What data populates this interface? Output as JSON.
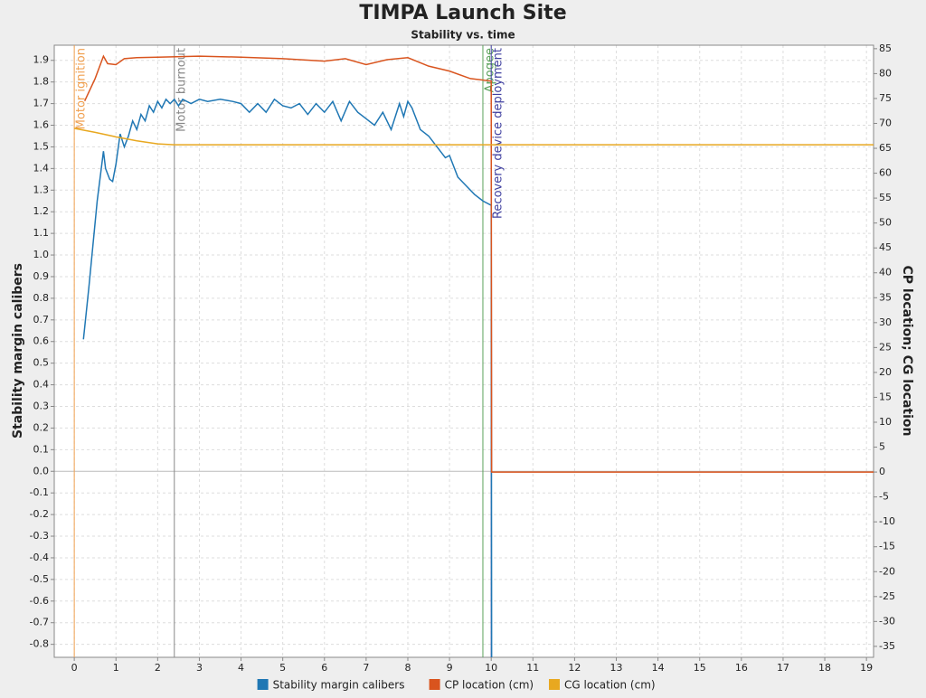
{
  "chart_data": {
    "type": "line",
    "title": "TIMPA Launch Site",
    "subtitle": "Stability vs. time",
    "ylabel": "Stability margin calibers",
    "y2label": "CP location; CG location",
    "xlim": [
      -0.48,
      19.17
    ],
    "xticks": [
      0,
      1,
      2,
      3,
      4,
      5,
      6,
      7,
      8,
      9,
      10,
      11,
      12,
      13,
      14,
      15,
      16,
      17,
      18,
      19
    ],
    "ylim": [
      -0.86,
      1.97
    ],
    "yticks": [
      -0.8,
      -0.7,
      -0.6,
      -0.5,
      -0.4,
      -0.3,
      -0.2,
      -0.1,
      {
        "value": 0,
        "label": "0.0"
      },
      0.1,
      0.2,
      0.3,
      0.4,
      0.5,
      0.6,
      0.7,
      0.8,
      0.9,
      {
        "value": 1,
        "label": "1.0"
      },
      1.1,
      1.2,
      1.3,
      1.4,
      1.5,
      1.6,
      1.7,
      1.8,
      1.9
    ],
    "y2lim": [
      -37.2,
      85.7
    ],
    "y2ticks": [
      -35,
      -30,
      -25,
      -20,
      -15,
      -10,
      -5,
      0,
      5,
      10,
      15,
      20,
      25,
      30,
      35,
      40,
      45,
      50,
      55,
      60,
      65,
      70,
      75,
      80,
      85
    ],
    "grid": true,
    "events": [
      {
        "x": 0,
        "label": "Motor ignition",
        "color": "#f0a050"
      },
      {
        "x": 2.4,
        "label": "Motor burnout",
        "color": "#888888"
      },
      {
        "x": 9.8,
        "label": "Apogee",
        "color": "#5aa05a"
      },
      {
        "x": 10,
        "label": "Recovery device deployment",
        "color": "#4040a0"
      }
    ],
    "series": [
      {
        "name": "Stability margin calibers",
        "color": "#1f77b4",
        "axis": "y",
        "x": [
          0.22,
          0.35,
          0.45,
          0.55,
          0.7,
          0.75,
          0.85,
          0.92,
          1.0,
          1.1,
          1.2,
          1.3,
          1.4,
          1.5,
          1.6,
          1.7,
          1.8,
          1.9,
          2.0,
          2.1,
          2.2,
          2.3,
          2.4,
          2.5,
          2.6,
          2.8,
          3.0,
          3.2,
          3.5,
          3.8,
          4.0,
          4.2,
          4.4,
          4.6,
          4.8,
          5.0,
          5.2,
          5.4,
          5.6,
          5.8,
          6.0,
          6.2,
          6.4,
          6.6,
          6.8,
          7.0,
          7.2,
          7.4,
          7.6,
          7.8,
          7.9,
          8.0,
          8.1,
          8.3,
          8.5,
          8.7,
          8.9,
          9.0,
          9.1,
          9.2,
          9.4,
          9.6,
          9.8,
          10.0,
          10.01
        ],
        "values": [
          0.61,
          0.85,
          1.05,
          1.25,
          1.48,
          1.4,
          1.35,
          1.34,
          1.42,
          1.56,
          1.5,
          1.55,
          1.62,
          1.58,
          1.65,
          1.62,
          1.69,
          1.66,
          1.71,
          1.68,
          1.72,
          1.7,
          1.72,
          1.69,
          1.72,
          1.7,
          1.72,
          1.71,
          1.72,
          1.71,
          1.7,
          1.66,
          1.7,
          1.66,
          1.72,
          1.69,
          1.68,
          1.7,
          1.65,
          1.7,
          1.66,
          1.71,
          1.62,
          1.71,
          1.66,
          1.63,
          1.6,
          1.66,
          1.58,
          1.7,
          1.64,
          1.71,
          1.68,
          1.58,
          1.55,
          1.5,
          1.45,
          1.46,
          1.41,
          1.36,
          1.32,
          1.28,
          1.25,
          1.23,
          -0.86
        ]
      },
      {
        "name": "CP location (cm)",
        "color": "#d9541e",
        "axis": "y2",
        "x": [
          0.25,
          0.5,
          0.7,
          0.8,
          1.0,
          1.2,
          1.5,
          2,
          3,
          4,
          5,
          6,
          6.5,
          7,
          7.5,
          8,
          8.5,
          9,
          9.5,
          10.0,
          10.01,
          19.17
        ],
        "values": [
          74.5,
          79,
          83.5,
          82,
          81.8,
          83,
          83.2,
          83.3,
          83.5,
          83.3,
          83,
          82.5,
          83,
          81.8,
          82.8,
          83.2,
          81.5,
          80.5,
          79,
          78.5,
          0,
          0
        ]
      },
      {
        "name": "CG location (cm)",
        "color": "#e8a820",
        "axis": "y2",
        "x": [
          0,
          0.5,
          1,
          1.5,
          2,
          2.4,
          5,
          10,
          19.17
        ],
        "values": [
          69,
          68.2,
          67.3,
          66.5,
          65.9,
          65.7,
          65.7,
          65.7,
          65.7
        ]
      }
    ]
  }
}
